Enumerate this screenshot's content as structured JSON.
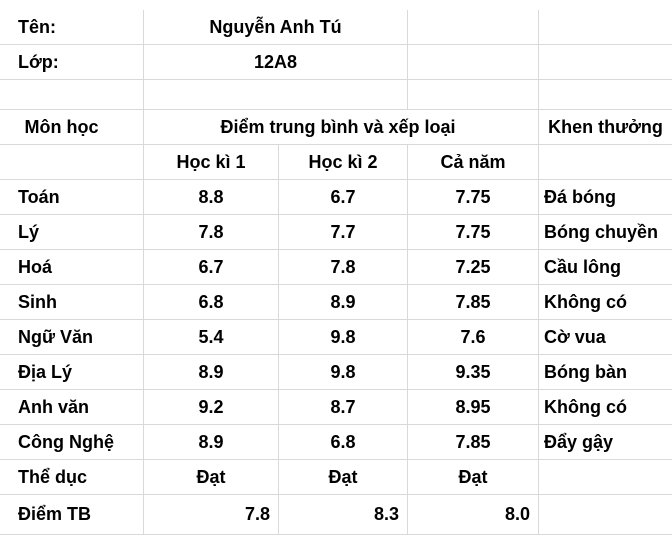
{
  "info": {
    "name_label": "Tên:",
    "name_value": "Nguyễn Anh Tú",
    "class_label": "Lớp:",
    "class_value": "12A8"
  },
  "header": {
    "subject": "Môn học",
    "scores_group": "Điểm trung bình và xếp loại",
    "reward": "Khen thưởng",
    "sem1": "Học kì 1",
    "sem2": "Học kì 2",
    "year": "Cả năm"
  },
  "rows": [
    {
      "subject": "Toán",
      "sem1": "8.8",
      "sem2": "6.7",
      "year": "7.75",
      "reward": "Đá bóng"
    },
    {
      "subject": "Lý",
      "sem1": "7.8",
      "sem2": "7.7",
      "year": "7.75",
      "reward": "Bóng chuyền"
    },
    {
      "subject": "Hoá",
      "sem1": "6.7",
      "sem2": "7.8",
      "year": "7.25",
      "reward": "Cầu lông"
    },
    {
      "subject": "Sinh",
      "sem1": "6.8",
      "sem2": "8.9",
      "year": "7.85",
      "reward": "Không có"
    },
    {
      "subject": "Ngữ Văn",
      "sem1": "5.4",
      "sem2": "9.8",
      "year": "7.6",
      "reward": "Cờ vua"
    },
    {
      "subject": "Địa Lý",
      "sem1": "8.9",
      "sem2": "9.8",
      "year": "9.35",
      "reward": "Bóng bàn"
    },
    {
      "subject": "Anh văn",
      "sem1": "9.2",
      "sem2": "8.7",
      "year": "8.95",
      "reward": "Không có"
    },
    {
      "subject": "Công Nghệ",
      "sem1": "8.9",
      "sem2": "6.8",
      "year": "7.85",
      "reward": "Đẩy gậy"
    },
    {
      "subject": "Thể dục",
      "sem1": "Đạt",
      "sem2": "Đạt",
      "year": "Đạt",
      "reward": ""
    }
  ],
  "average": {
    "label": "Điểm TB",
    "sem1": "7.8",
    "sem2": "8.3",
    "year": "8.0"
  }
}
